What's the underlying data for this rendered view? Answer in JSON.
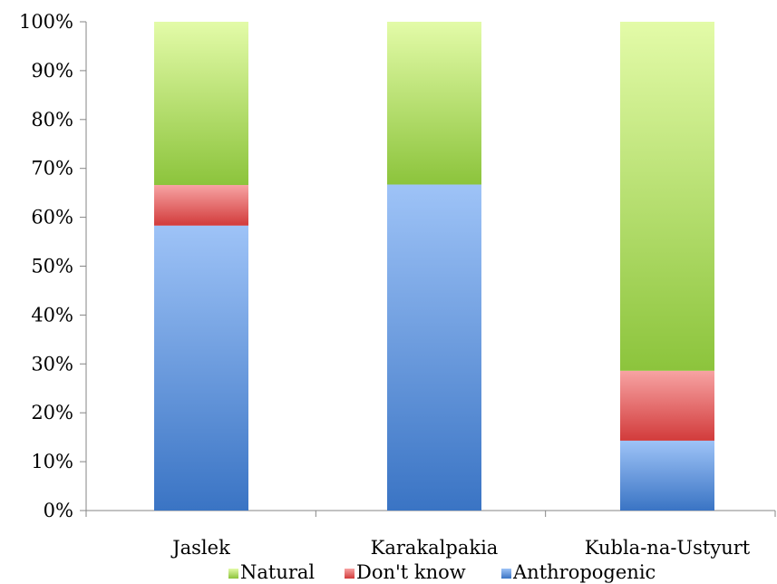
{
  "chart_data": {
    "type": "bar",
    "stacked": true,
    "percent": true,
    "categories": [
      "Jaslek",
      "Karakalpakia",
      "Kubla-na-Ustyurt"
    ],
    "series": [
      {
        "name": "Anthropogenic",
        "values": [
          58.3,
          66.7,
          14.3
        ],
        "color": "#4f81bd"
      },
      {
        "name": "Don't know",
        "values": [
          8.3,
          0,
          14.3
        ],
        "color": "#c0504d"
      },
      {
        "name": "Natural",
        "values": [
          33.4,
          33.3,
          71.4
        ],
        "color": "#9bbb59"
      }
    ],
    "legend_order": [
      "Natural",
      "Don't know",
      "Anthropogenic"
    ],
    "ylim": [
      0,
      100
    ],
    "yticks": [
      "0%",
      "10%",
      "20%",
      "30%",
      "40%",
      "50%",
      "60%",
      "70%",
      "80%",
      "90%",
      "100%"
    ],
    "legend_position": "bottom",
    "grid": false,
    "title": "",
    "xlabel": "",
    "ylabel": ""
  }
}
